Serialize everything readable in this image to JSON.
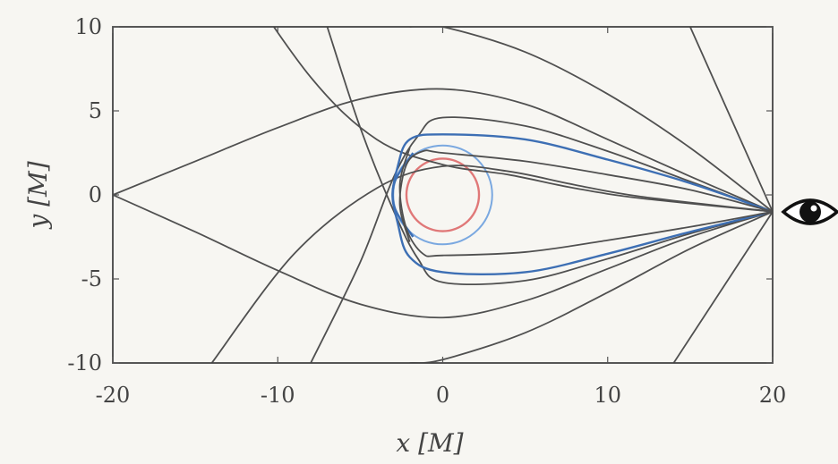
{
  "chart_data": {
    "type": "line",
    "title": "",
    "xlabel": "x",
    "xlabel_unit": "[M]",
    "ylabel": "y",
    "ylabel_unit": "[M]",
    "xlim": [
      -20,
      20
    ],
    "ylim": [
      -10,
      10
    ],
    "x_ticks": [
      -20,
      -10,
      0,
      10,
      20
    ],
    "y_ticks": [
      -10,
      -5,
      0,
      5,
      10
    ],
    "x_tick_labels": [
      "-20",
      "-10",
      "0",
      "10",
      "20"
    ],
    "y_tick_labels": [
      "-10",
      "-5",
      "0",
      "5",
      "10"
    ],
    "grid": false,
    "observer": {
      "x": 20,
      "y": -1,
      "icon": "eye-icon"
    },
    "circles": [
      {
        "cx": 0,
        "cy": 0,
        "r": 2.2,
        "color": "#e07878"
      },
      {
        "cx": 0,
        "cy": 0,
        "r": 3.0,
        "color": "#7aa8e0"
      }
    ],
    "series": [
      {
        "color": "#505050",
        "x": [
          -13,
          -8,
          -4,
          0,
          4,
          8,
          12,
          20
        ],
        "y": [
          14,
          7,
          3.3,
          1.8,
          1.2,
          0.4,
          -0.2,
          -1
        ]
      },
      {
        "color": "#505050",
        "x": [
          -14,
          -9,
          -4,
          0,
          4,
          8,
          12,
          20
        ],
        "y": [
          -10,
          -3.5,
          0.4,
          1.7,
          1.4,
          0.6,
          -0.1,
          -1
        ]
      },
      {
        "color": "#505050",
        "x": [
          -20,
          -15,
          -10,
          -5,
          0,
          5,
          10,
          15,
          20
        ],
        "y": [
          0,
          2,
          4,
          5.7,
          6.3,
          5.4,
          3.3,
          1.1,
          -1
        ]
      },
      {
        "color": "#505050",
        "x": [
          -20,
          -15,
          -10,
          -5,
          0,
          5,
          10,
          15,
          20
        ],
        "y": [
          0,
          -2.2,
          -4.5,
          -6.5,
          -7.3,
          -6.3,
          -4.4,
          -2.5,
          -1
        ]
      },
      {
        "color": "#505050",
        "x": [
          -8,
          -5,
          -3,
          -1.5,
          0,
          5,
          10,
          15,
          20
        ],
        "y": [
          -10,
          -4,
          1,
          3.5,
          4.6,
          4.1,
          2.6,
          0.8,
          -1
        ]
      },
      {
        "color": "#505050",
        "x": [
          -7,
          -5,
          -3,
          -1.5,
          0,
          5,
          10,
          15,
          20
        ],
        "y": [
          10,
          4,
          -0.9,
          -3.8,
          -5.2,
          -5.1,
          -3.8,
          -2.3,
          -1
        ]
      },
      {
        "color": "#3d6fb4",
        "x": [
          -1.8,
          -3,
          -2.7,
          -2,
          0,
          5,
          10,
          15,
          20
        ],
        "y": [
          2.5,
          0.5,
          -1.8,
          -3.7,
          -4.6,
          -4.6,
          -3.5,
          -2.2,
          -1
        ]
      },
      {
        "color": "#3d6fb4",
        "x": [
          -1.8,
          -3,
          -2.7,
          -2,
          0,
          5,
          10,
          15,
          20
        ],
        "y": [
          -2.5,
          -0.5,
          1.8,
          3.3,
          3.6,
          3.3,
          2.1,
          0.7,
          -1
        ]
      },
      {
        "color": "#505050",
        "x": [
          -2,
          -2.6,
          -2.2,
          -1.2,
          0,
          5,
          10,
          15,
          20
        ],
        "y": [
          -2.8,
          -0.6,
          1.8,
          2.6,
          2.5,
          2.0,
          1.2,
          0.3,
          -1
        ]
      },
      {
        "color": "#505050",
        "x": [
          -2,
          -2.6,
          -2.2,
          -1.2,
          0,
          5,
          10,
          15,
          20
        ],
        "y": [
          2.8,
          0.6,
          -2.0,
          -3.5,
          -3.6,
          -3.4,
          -2.7,
          -1.9,
          -1
        ]
      },
      {
        "color": "#505050",
        "x": [
          -2,
          0,
          5,
          10,
          15,
          20
        ],
        "y": [
          10,
          10,
          8.5,
          6,
          2.8,
          -1
        ]
      },
      {
        "color": "#505050",
        "x": [
          -2,
          0,
          5,
          10,
          15,
          20
        ],
        "y": [
          -10,
          -9.8,
          -8.2,
          -5.8,
          -3.2,
          -1
        ]
      },
      {
        "color": "#505050",
        "x": [
          15,
          20
        ],
        "y": [
          10,
          -1
        ]
      },
      {
        "color": "#505050",
        "x": [
          14,
          20
        ],
        "y": [
          -10,
          -1
        ]
      }
    ]
  }
}
